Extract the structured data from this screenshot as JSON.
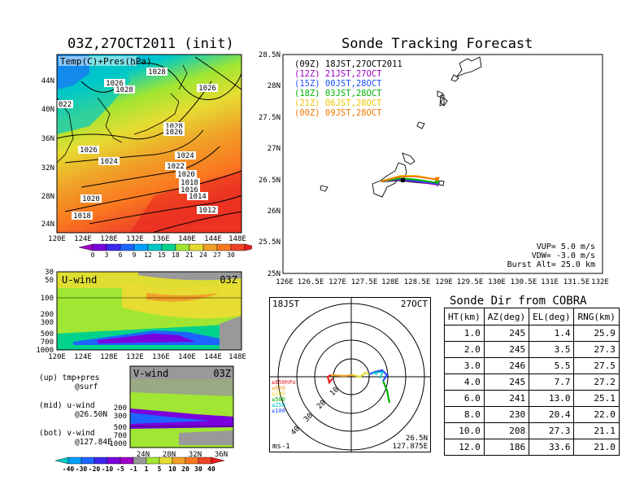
{
  "left_panel": {
    "title": "03Z,27OCT2011  (init)",
    "map_label": "Temp(C)+Pres(hPa)",
    "lat_labels": [
      "44N",
      "40N",
      "36N",
      "32N",
      "28N",
      "24N"
    ],
    "lon_labels": [
      "120E",
      "124E",
      "128E",
      "132E",
      "136E",
      "140E",
      "144E",
      "148E"
    ],
    "isobar_labels": [
      "1028",
      "1026",
      "1028",
      "1026",
      "022",
      "1028",
      "1026",
      "1026",
      "1024",
      "1024",
      "1022",
      "1020",
      "1018",
      "1016",
      "1014",
      "1020",
      "1012",
      "1018"
    ],
    "colorbar_ticks": [
      "0",
      "3",
      "6",
      "9",
      "12",
      "15",
      "18",
      "21",
      "24",
      "27",
      "30"
    ],
    "colorbar_colors": [
      "#a000c8",
      "#7a00dc",
      "#3c28f0",
      "#1e64ff",
      "#00a0ff",
      "#00c8c8",
      "#00d28c",
      "#a0e632",
      "#e6dc32",
      "#f0a028",
      "#fa7820",
      "#f04628",
      "#e61e1e"
    ]
  },
  "uwind_panel": {
    "label": "U-wind",
    "time": "03Z",
    "y_labels": [
      "30",
      "50",
      "100",
      "200",
      "300",
      "500",
      "700",
      "1000"
    ],
    "x_labels": [
      "120E",
      "124E",
      "128E",
      "132E",
      "136E",
      "140E",
      "144E",
      "148E"
    ]
  },
  "vwind_panel": {
    "label": "V-wind",
    "time": "03Z",
    "y_labels": [
      "200",
      "300",
      "500",
      "700",
      "1000"
    ],
    "x_labels": [
      "24N",
      "28N",
      "32N",
      "36N"
    ],
    "colorbar_ticks": [
      "-40",
      "-30",
      "-20",
      "-10",
      "-5",
      "-1",
      "1",
      "5",
      "10",
      "20",
      "30",
      "40"
    ],
    "colorbar_colors": [
      "#00c8c8",
      "#00a0ff",
      "#1e64ff",
      "#3c28f0",
      "#7a00dc",
      "#a000c8",
      "#999999",
      "#a0e632",
      "#e6dc32",
      "#f0a028",
      "#fa7820",
      "#f04628",
      "#e61e1e"
    ]
  },
  "legend": {
    "line1a": "(up) tmp+pres",
    "line1b": "@surf",
    "line2a": "(mid) u-wind",
    "line2b": "@26.50N",
    "line3a": "(bot) v-wind",
    "line3b": "@127.84E"
  },
  "track_panel": {
    "title": "Sonde Tracking Forecast",
    "lat_labels": [
      "28.5N",
      "28N",
      "27.5N",
      "27N",
      "26.5N",
      "26N",
      "25.5N",
      "25N"
    ],
    "lon_labels": [
      "126E",
      "126.5E",
      "127E",
      "127.5E",
      "128E",
      "128.5E",
      "129E",
      "129.5E",
      "130E",
      "130.5E",
      "131E",
      "131.5E",
      "132E"
    ],
    "times": [
      {
        "text": "(09Z)  18JST,27OCT2011",
        "color": "#000000"
      },
      {
        "text": "(12Z)  21JST,27OCT",
        "color": "#a000c8"
      },
      {
        "text": "(15Z)  00JST,28OCT",
        "color": "#1e50ff"
      },
      {
        "text": "(18Z)  03JST,28OCT",
        "color": "#00b400"
      },
      {
        "text": "(21Z)  06JST,28OCT",
        "color": "#f0c800"
      },
      {
        "text": "(00Z)  09JST,28OCT",
        "color": "#f07800"
      }
    ],
    "vup": "VUP=  5.0  m/s",
    "vdw": "VDW= -3.0  m/s",
    "burst": "Burst Alt= 25.0  km"
  },
  "hodo_panel": {
    "time_jst": "18JST",
    "date": "27OCT",
    "lat": "26.5N",
    "lon": "127.875E",
    "units": "ms-1",
    "ring_labels": [
      "10",
      "20",
      "30",
      "40"
    ],
    "level_labels": [
      {
        "text": "≥850hPa",
        "color": "#e61e1e"
      },
      {
        "text": "≤850",
        "color": "#f0a028"
      },
      {
        "text": "≤700",
        "color": "#e6dc32"
      },
      {
        "text": "≤500",
        "color": "#00b400"
      },
      {
        "text": "≤250",
        "color": "#00c8c8"
      },
      {
        "text": "≤100",
        "color": "#1e50ff"
      }
    ]
  },
  "table": {
    "title": "Sonde Dir from COBRA",
    "headers": [
      "HT(km)",
      "AZ(deg)",
      "EL(deg)",
      "RNG(km)"
    ],
    "rows": [
      [
        "1.0",
        "245",
        "1.4",
        "25.9"
      ],
      [
        "2.0",
        "245",
        "3.5",
        "27.3"
      ],
      [
        "3.0",
        "246",
        "5.5",
        "27.5"
      ],
      [
        "4.0",
        "245",
        "7.7",
        "27.2"
      ],
      [
        "6.0",
        "241",
        "13.0",
        "25.1"
      ],
      [
        "8.0",
        "230",
        "20.4",
        "22.0"
      ],
      [
        "10.0",
        "208",
        "27.3",
        "21.1"
      ],
      [
        "12.0",
        "186",
        "33.6",
        "21.0"
      ]
    ]
  },
  "chart_data": [
    {
      "type": "line",
      "title": "Sonde Tracking Forecast",
      "xlim": [
        "126E",
        "132E"
      ],
      "ylim": [
        "25N",
        "28.5N"
      ],
      "series": [
        {
          "name": "(09Z)  18JST,27OCT2011",
          "x": [
            127.84,
            128.2,
            128.5,
            128.9
          ],
          "y": [
            26.47,
            26.49,
            26.46,
            26.43
          ]
        },
        {
          "name": "(12Z)  21JST,27OCT",
          "x": [
            127.84,
            128.2,
            128.5,
            128.9
          ],
          "y": [
            26.47,
            26.5,
            26.47,
            26.42
          ]
        },
        {
          "name": "(15Z)  00JST,28OCT",
          "x": [
            127.84,
            128.2,
            128.5,
            128.9
          ],
          "y": [
            26.47,
            26.51,
            26.48,
            26.44
          ]
        },
        {
          "name": "(18Z)  03JST,28OCT",
          "x": [
            127.84,
            128.2,
            128.5,
            128.9
          ],
          "y": [
            26.47,
            26.52,
            26.5,
            26.45
          ]
        },
        {
          "name": "(21Z)  06JST,28OCT",
          "x": [
            127.84,
            128.2,
            128.5,
            128.9
          ],
          "y": [
            26.47,
            26.56,
            26.56,
            26.5
          ]
        },
        {
          "name": "(00Z)  09JST,28OCT",
          "x": [
            127.84,
            128.2,
            128.5,
            128.9
          ],
          "y": [
            26.47,
            26.55,
            26.55,
            26.5
          ]
        }
      ]
    },
    {
      "type": "table",
      "title": "Sonde Dir from COBRA",
      "columns": [
        "HT(km)",
        "AZ(deg)",
        "EL(deg)",
        "RNG(km)"
      ],
      "rows": [
        [
          1.0,
          245,
          1.4,
          25.9
        ],
        [
          2.0,
          245,
          3.5,
          27.3
        ],
        [
          3.0,
          246,
          5.5,
          27.5
        ],
        [
          4.0,
          245,
          7.7,
          27.2
        ],
        [
          6.0,
          241,
          13.0,
          25.1
        ],
        [
          8.0,
          230,
          20.4,
          22.0
        ],
        [
          10.0,
          208,
          27.3,
          21.1
        ],
        [
          12.0,
          186,
          33.6,
          21.0
        ]
      ]
    }
  ]
}
